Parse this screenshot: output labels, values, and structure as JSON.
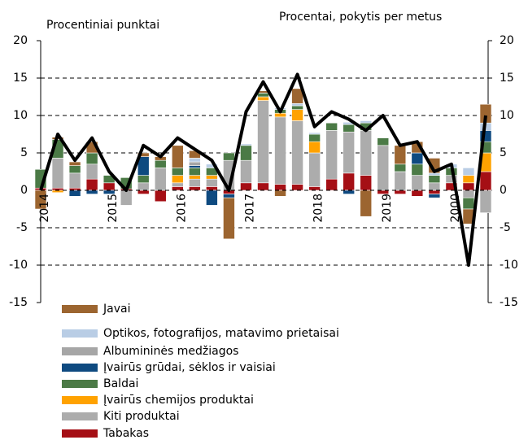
{
  "chart_data": {
    "type": "bar",
    "stacked": true,
    "ylabel": "Procentiniai punktai",
    "y2label": "Procentai, pokytis per metus",
    "categories": [
      "2014",
      null,
      null,
      null,
      "2015",
      null,
      null,
      null,
      "2016",
      null,
      null,
      null,
      "2017",
      null,
      null,
      null,
      "2018",
      null,
      null,
      null,
      "2019",
      null,
      null,
      null,
      "2000",
      null,
      null
    ],
    "series": [
      {
        "name": "Javai",
        "color": "#9c6530",
        "values": [
          -2.5,
          0.3,
          0.5,
          1.5,
          0,
          0,
          0.5,
          0.5,
          3,
          1,
          0,
          -5.5,
          0,
          0.3,
          -0.8,
          2,
          0,
          0,
          0,
          -3.5,
          0,
          2.5,
          1.5,
          2,
          0,
          -2,
          2.5
        ]
      },
      {
        "name": "Optikos, fotografijos, matavimo prietaisai",
        "color": "#b9cde5",
        "values": [
          0,
          0,
          0,
          0,
          0,
          0,
          0,
          0,
          0,
          0.5,
          0.5,
          0,
          0.2,
          0,
          0.2,
          0.3,
          0.2,
          0,
          0.3,
          0.3,
          0,
          0,
          0,
          0.3,
          0.5,
          1,
          1
        ]
      },
      {
        "name": "Albumininės medžiagos",
        "color": "#a6a6a6",
        "values": [
          0,
          0,
          0,
          0,
          0,
          0,
          0,
          0,
          0,
          0.5,
          0,
          0,
          0,
          0,
          0,
          0,
          0,
          0,
          0,
          0,
          0,
          0,
          0,
          0,
          0,
          0,
          0
        ]
      },
      {
        "name": "Įvairūs grūdai, sėklos ir vaisiai",
        "color": "#0e4a80",
        "values": [
          0,
          0,
          -0.8,
          -0.5,
          -0.5,
          0,
          2.5,
          0,
          0,
          0.3,
          -2,
          -0.5,
          0,
          0,
          0,
          0,
          0,
          0,
          -0.5,
          0,
          0,
          0,
          1.5,
          -0.5,
          0,
          0,
          1.5
        ]
      },
      {
        "name": "Baldai",
        "color": "#4b7a46",
        "values": [
          2.5,
          2.5,
          1,
          1.5,
          1,
          1.5,
          1,
          1,
          1,
          1,
          1,
          1,
          2,
          0.5,
          0.5,
          0.5,
          1,
          1,
          1,
          1,
          1,
          1,
          1.5,
          1,
          1,
          -1.5,
          1.5
        ]
      },
      {
        "name": "Įvairūs chemijos produktai",
        "color": "#ffa200",
        "values": [
          0,
          -0.3,
          0,
          0,
          0,
          0,
          0,
          0,
          1,
          0.5,
          0.5,
          0,
          0,
          0.5,
          0.5,
          1.5,
          1.5,
          0,
          0,
          0,
          0,
          0,
          0,
          0,
          0,
          1,
          2.5
        ]
      },
      {
        "name": "Kiti produktai",
        "color": "#acacac",
        "values": [
          0,
          4,
          2,
          2,
          0,
          -2,
          1,
          3,
          0.5,
          1,
          1,
          4,
          3,
          11,
          9,
          8.5,
          4.5,
          6.5,
          5.5,
          6,
          6,
          2.5,
          2,
          1,
          1,
          -1,
          -3
        ]
      },
      {
        "name": "Tabakas",
        "color": "#a50f15",
        "values": [
          0.3,
          0.3,
          0.3,
          1.5,
          1,
          0.2,
          -0.5,
          -1.5,
          0.5,
          0.5,
          0.5,
          -0.5,
          1,
          1,
          0.8,
          0.8,
          0.5,
          1.5,
          2.3,
          2,
          -0.5,
          -0.5,
          -0.8,
          -0.5,
          1,
          1,
          2.5
        ]
      }
    ],
    "line": {
      "color": "#000000",
      "axis": "y2",
      "values": [
        0,
        7.5,
        4,
        7,
        2.5,
        0,
        6,
        4.5,
        7,
        5.5,
        4,
        0,
        10.5,
        14.5,
        10.5,
        15.5,
        8.5,
        10.5,
        9.5,
        8,
        10,
        6,
        6.5,
        2.5,
        3.5,
        -10,
        10
      ]
    },
    "ylim": [
      -15,
      20
    ],
    "yticks": [
      -15,
      -10,
      -5,
      0,
      5,
      10,
      15,
      20
    ],
    "y2lim": [
      -15,
      20
    ],
    "y2ticks": [
      -15,
      -10,
      -5,
      0,
      5,
      10,
      15,
      20
    ],
    "grid": true
  }
}
